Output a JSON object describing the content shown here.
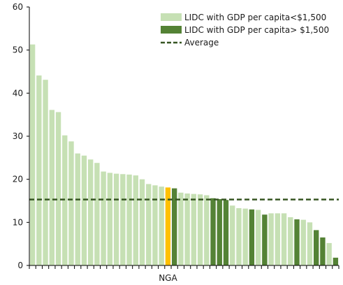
{
  "chart_data": {
    "type": "bar",
    "title": "",
    "xlabel": "",
    "ylabel": "",
    "ylim": [
      0,
      60
    ],
    "yticks": [
      0,
      10,
      20,
      30,
      40,
      50,
      60
    ],
    "grid": false,
    "legend_position": "top-right",
    "x_annotation": "NGA",
    "series": [
      {
        "name": "LIDC with GDP per capita<$1,500",
        "color": "#c6e0b4",
        "key": "low"
      },
      {
        "name": "LIDC with GDP per capita> $1,500",
        "color": "#548235",
        "key": "high"
      }
    ],
    "highlight": {
      "label": "NGA",
      "color": "#ffc000"
    },
    "average": {
      "name": "Average",
      "value": 15.3,
      "color": "#375623"
    },
    "bars": [
      {
        "value": 51.3,
        "group": "low"
      },
      {
        "value": 44.1,
        "group": "low"
      },
      {
        "value": 43.1,
        "group": "low"
      },
      {
        "value": 36.1,
        "group": "low"
      },
      {
        "value": 35.6,
        "group": "low"
      },
      {
        "value": 30.2,
        "group": "low"
      },
      {
        "value": 28.8,
        "group": "low"
      },
      {
        "value": 26.0,
        "group": "low"
      },
      {
        "value": 25.5,
        "group": "low"
      },
      {
        "value": 24.6,
        "group": "low"
      },
      {
        "value": 23.8,
        "group": "low"
      },
      {
        "value": 21.8,
        "group": "low"
      },
      {
        "value": 21.5,
        "group": "low"
      },
      {
        "value": 21.3,
        "group": "low"
      },
      {
        "value": 21.2,
        "group": "low"
      },
      {
        "value": 21.1,
        "group": "low"
      },
      {
        "value": 20.9,
        "group": "low"
      },
      {
        "value": 20.0,
        "group": "low"
      },
      {
        "value": 18.9,
        "group": "low"
      },
      {
        "value": 18.6,
        "group": "low"
      },
      {
        "value": 18.3,
        "group": "low"
      },
      {
        "value": 18.1,
        "group": "highlight",
        "label": "NGA"
      },
      {
        "value": 17.9,
        "group": "high"
      },
      {
        "value": 16.9,
        "group": "low"
      },
      {
        "value": 16.7,
        "group": "low"
      },
      {
        "value": 16.6,
        "group": "low"
      },
      {
        "value": 16.5,
        "group": "low"
      },
      {
        "value": 16.3,
        "group": "low"
      },
      {
        "value": 15.6,
        "group": "high"
      },
      {
        "value": 15.4,
        "group": "high"
      },
      {
        "value": 15.2,
        "group": "high"
      },
      {
        "value": 13.9,
        "group": "low"
      },
      {
        "value": 13.3,
        "group": "low"
      },
      {
        "value": 13.2,
        "group": "low"
      },
      {
        "value": 13.0,
        "group": "high"
      },
      {
        "value": 12.9,
        "group": "low"
      },
      {
        "value": 11.8,
        "group": "high"
      },
      {
        "value": 12.1,
        "group": "low"
      },
      {
        "value": 12.1,
        "group": "low"
      },
      {
        "value": 12.1,
        "group": "low"
      },
      {
        "value": 11.2,
        "group": "low"
      },
      {
        "value": 10.7,
        "group": "high"
      },
      {
        "value": 10.6,
        "group": "low"
      },
      {
        "value": 10.0,
        "group": "low"
      },
      {
        "value": 8.2,
        "group": "high"
      },
      {
        "value": 6.5,
        "group": "high"
      },
      {
        "value": 5.2,
        "group": "low"
      },
      {
        "value": 1.8,
        "group": "high"
      }
    ]
  }
}
